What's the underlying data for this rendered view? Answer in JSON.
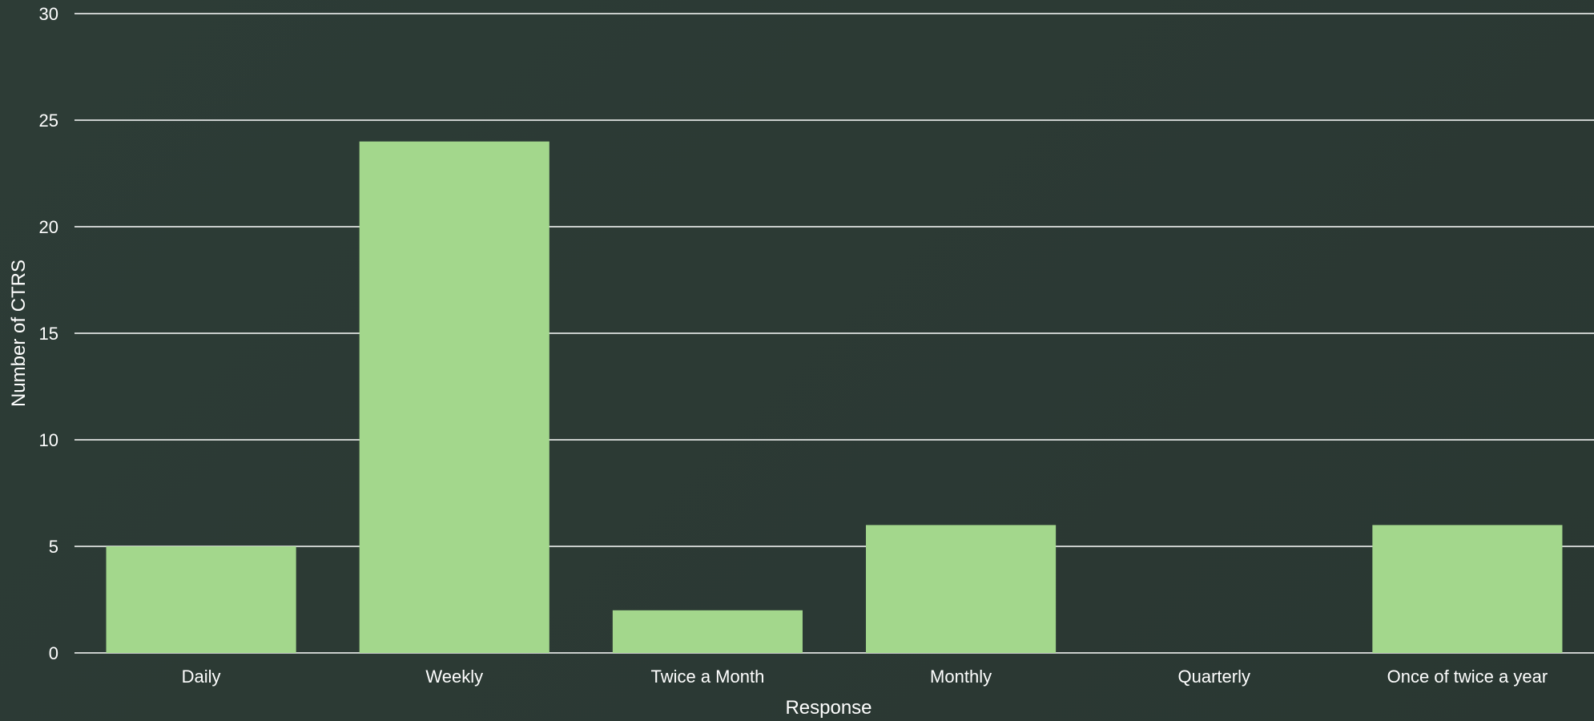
{
  "chart_data": {
    "type": "bar",
    "categories": [
      "Daily",
      "Weekly",
      "Twice a Month",
      "Monthly",
      "Quarterly",
      "Once of twice a year"
    ],
    "values": [
      5,
      24,
      2,
      6,
      0,
      6
    ],
    "xlabel": "Response",
    "ylabel": "Number of CTRS",
    "ylim": [
      0,
      30
    ],
    "yticks": [
      0,
      5,
      10,
      15,
      20,
      25,
      30
    ],
    "grid": true,
    "legend": "none",
    "colors": {
      "bar": "#a3d78c",
      "background": "#2b3934",
      "grid": "#ffffff",
      "text": "#ffffff"
    }
  }
}
